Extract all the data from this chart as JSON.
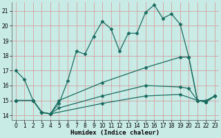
{
  "xlabel": "Humidex (Indice chaleur)",
  "ylabel": "",
  "bg_color": "#c8ebe6",
  "grid_color": "#d4a0a0",
  "line_color": "#1a6b60",
  "xlim": [
    -0.5,
    23.5
  ],
  "ylim": [
    13.7,
    21.6
  ],
  "yticks": [
    14,
    15,
    16,
    17,
    18,
    19,
    20,
    21
  ],
  "xticks": [
    0,
    1,
    2,
    3,
    4,
    5,
    6,
    7,
    8,
    9,
    10,
    11,
    12,
    13,
    14,
    15,
    16,
    17,
    18,
    19,
    20,
    21,
    22,
    23
  ],
  "line1_x": [
    0,
    1,
    2,
    3,
    4,
    5,
    6,
    7,
    8,
    9,
    10,
    11,
    12,
    13,
    14,
    15,
    16,
    17,
    18,
    19,
    20,
    21,
    22,
    23
  ],
  "line1_y": [
    17.0,
    16.4,
    15.0,
    14.2,
    14.1,
    14.8,
    16.3,
    18.3,
    18.1,
    19.3,
    20.3,
    19.8,
    18.3,
    19.5,
    19.5,
    20.9,
    21.4,
    20.5,
    20.8,
    20.1,
    17.9,
    15.0,
    14.9,
    15.3
  ],
  "line2_x": [
    0,
    2,
    3,
    4,
    5,
    10,
    15,
    19,
    20,
    21,
    22,
    23
  ],
  "line2_y": [
    15.0,
    15.0,
    14.2,
    14.1,
    15.0,
    16.2,
    17.2,
    17.9,
    17.9,
    15.0,
    15.0,
    15.3
  ],
  "line3_x": [
    0,
    2,
    3,
    4,
    5,
    10,
    15,
    19,
    20,
    21,
    22,
    23
  ],
  "line3_y": [
    15.0,
    15.0,
    14.2,
    14.1,
    14.5,
    15.3,
    16.0,
    15.9,
    15.8,
    15.0,
    14.9,
    15.3
  ],
  "line4_x": [
    0,
    2,
    3,
    4,
    10,
    15,
    19,
    21,
    22,
    23
  ],
  "line4_y": [
    15.0,
    15.0,
    14.2,
    14.1,
    14.8,
    15.3,
    15.4,
    15.0,
    14.9,
    15.3
  ]
}
